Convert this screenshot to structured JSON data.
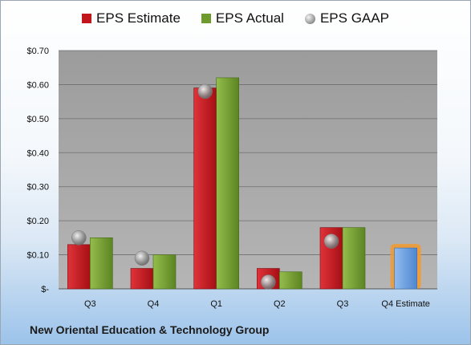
{
  "chart_data": {
    "type": "bar",
    "title": "",
    "footer": "New Oriental Education & Technology Group",
    "categories": [
      "Q3",
      "Q4",
      "Q1",
      "Q2",
      "Q3",
      "Q4 Estimate"
    ],
    "series": [
      {
        "name": "EPS Estimate",
        "values": [
          0.13,
          0.06,
          0.59,
          0.06,
          0.18,
          null
        ],
        "color": "#c0161c"
      },
      {
        "name": "EPS Actual",
        "values": [
          0.15,
          0.1,
          0.62,
          0.05,
          0.18,
          null
        ],
        "color": "#6f9a2c"
      },
      {
        "name": "EPS GAAP",
        "values": [
          0.15,
          0.09,
          0.58,
          0.02,
          0.14,
          null
        ],
        "color": "#9a9a9a",
        "marker": "circle"
      },
      {
        "name": "Q4 Estimate",
        "values": [
          null,
          null,
          null,
          null,
          null,
          0.12
        ],
        "color": "#6a9fdc",
        "highlight": "#f0a040"
      }
    ],
    "ylim": [
      0,
      0.7
    ],
    "yticks": [
      0,
      0.1,
      0.2,
      0.3,
      0.4,
      0.5,
      0.6,
      0.7
    ],
    "ytick_labels": [
      "$-",
      "$0.10",
      "$0.20",
      "$0.30",
      "$0.40",
      "$0.50",
      "$0.60",
      "$0.70"
    ],
    "legend_position": "top",
    "grid": true,
    "plot_background": "#a6a6a6"
  }
}
